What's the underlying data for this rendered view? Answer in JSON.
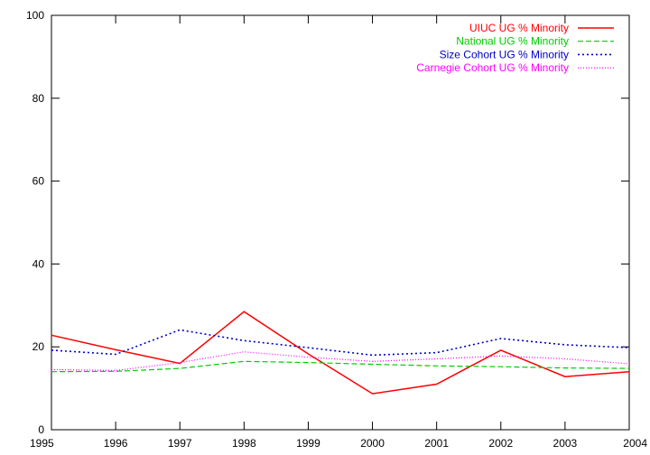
{
  "chart_data": {
    "type": "line",
    "x": [
      1995,
      1996,
      1997,
      1998,
      1999,
      2000,
      2001,
      2002,
      2003,
      2004
    ],
    "xlim": [
      1995,
      2004
    ],
    "ylim": [
      0,
      100
    ],
    "xticks": [
      1995,
      1996,
      1997,
      1998,
      1999,
      2000,
      2001,
      2002,
      2003,
      2004
    ],
    "yticks": [
      0,
      20,
      40,
      60,
      80,
      100
    ],
    "grid": false,
    "legend_position": "top-right",
    "series": [
      {
        "name": "UIUC UG % Minority",
        "color": "#ff0000",
        "dash": "solid",
        "values": [
          22.8,
          19.3,
          16.0,
          28.5,
          18.3,
          8.7,
          11.0,
          19.2,
          12.8,
          14.0
        ]
      },
      {
        "name": "National UG % Minority",
        "color": "#00cc00",
        "dash": "dashed",
        "values": [
          14.0,
          14.1,
          14.8,
          16.5,
          16.2,
          15.8,
          15.4,
          15.2,
          14.9,
          14.8
        ]
      },
      {
        "name": "Size Cohort UG % Minority",
        "color": "#0000cc",
        "dash": "dotted",
        "values": [
          19.2,
          18.2,
          24.1,
          21.5,
          19.8,
          18.0,
          18.6,
          22.0,
          20.5,
          19.8
        ]
      },
      {
        "name": "Carnegie Cohort UG % Minority",
        "color": "#ff00ff",
        "dash": "fine-dotted",
        "values": [
          14.5,
          14.3,
          16.2,
          18.8,
          17.5,
          16.5,
          17.1,
          17.8,
          17.1,
          15.9
        ]
      }
    ]
  }
}
